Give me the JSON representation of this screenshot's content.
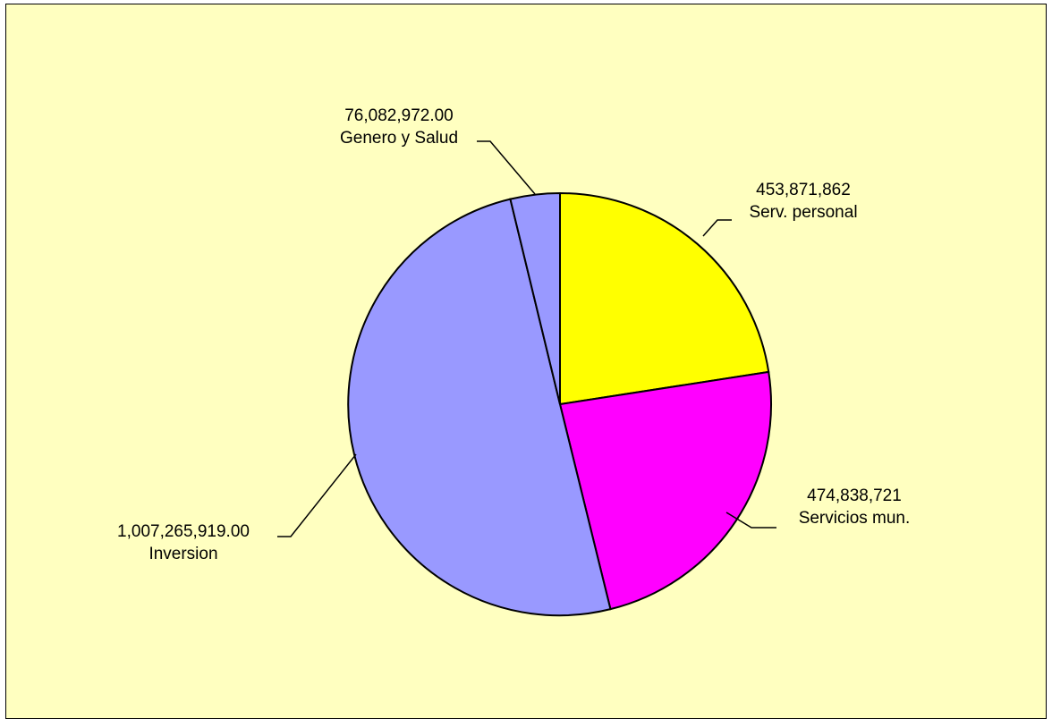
{
  "colors": {
    "plot_background": "#ffffc0",
    "border": "#000000"
  },
  "chart_data": {
    "type": "pie",
    "title": "",
    "slices": [
      {
        "value_label": "453,871,862",
        "name": "Serv. personal",
        "value": 453871862,
        "color": "#ffff00"
      },
      {
        "value_label": "474,838,721",
        "name": "Servicios mun.",
        "value": 474838721,
        "color": "#ff00ff"
      },
      {
        "value_label": "1,007,265,919.00",
        "name": "Inversion",
        "value": 1007265919,
        "color": "#9999ff"
      },
      {
        "value_label": "76,082,972.00",
        "name": "Genero y Salud",
        "value": 76082972,
        "color": "#9999ff"
      }
    ],
    "start_angle": "12 o'clock",
    "direction": "clockwise",
    "legend": "none",
    "data_labels": "outside with leader lines"
  }
}
